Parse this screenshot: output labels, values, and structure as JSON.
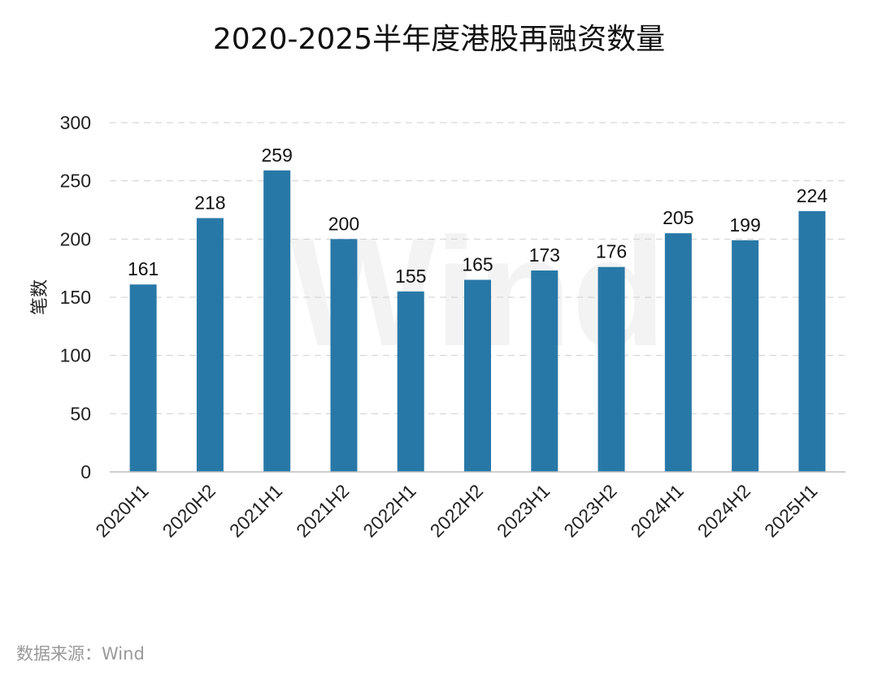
{
  "watermark": "Wind",
  "source": "数据来源：Wind",
  "chart_data": {
    "type": "bar",
    "title": "2020-2025半年度港股再融资数量",
    "xlabel": "",
    "ylabel": "笔数",
    "ylim": [
      0,
      300
    ],
    "yticks": [
      0,
      50,
      100,
      150,
      200,
      250,
      300
    ],
    "grid": true,
    "categories": [
      "2020H1",
      "2020H2",
      "2021H1",
      "2021H2",
      "2022H1",
      "2022H2",
      "2023H1",
      "2023H2",
      "2024H1",
      "2024H2",
      "2025H1"
    ],
    "values": [
      161,
      218,
      259,
      200,
      155,
      165,
      173,
      176,
      205,
      199,
      224
    ],
    "colors": {
      "bar": "#2878a7"
    }
  }
}
